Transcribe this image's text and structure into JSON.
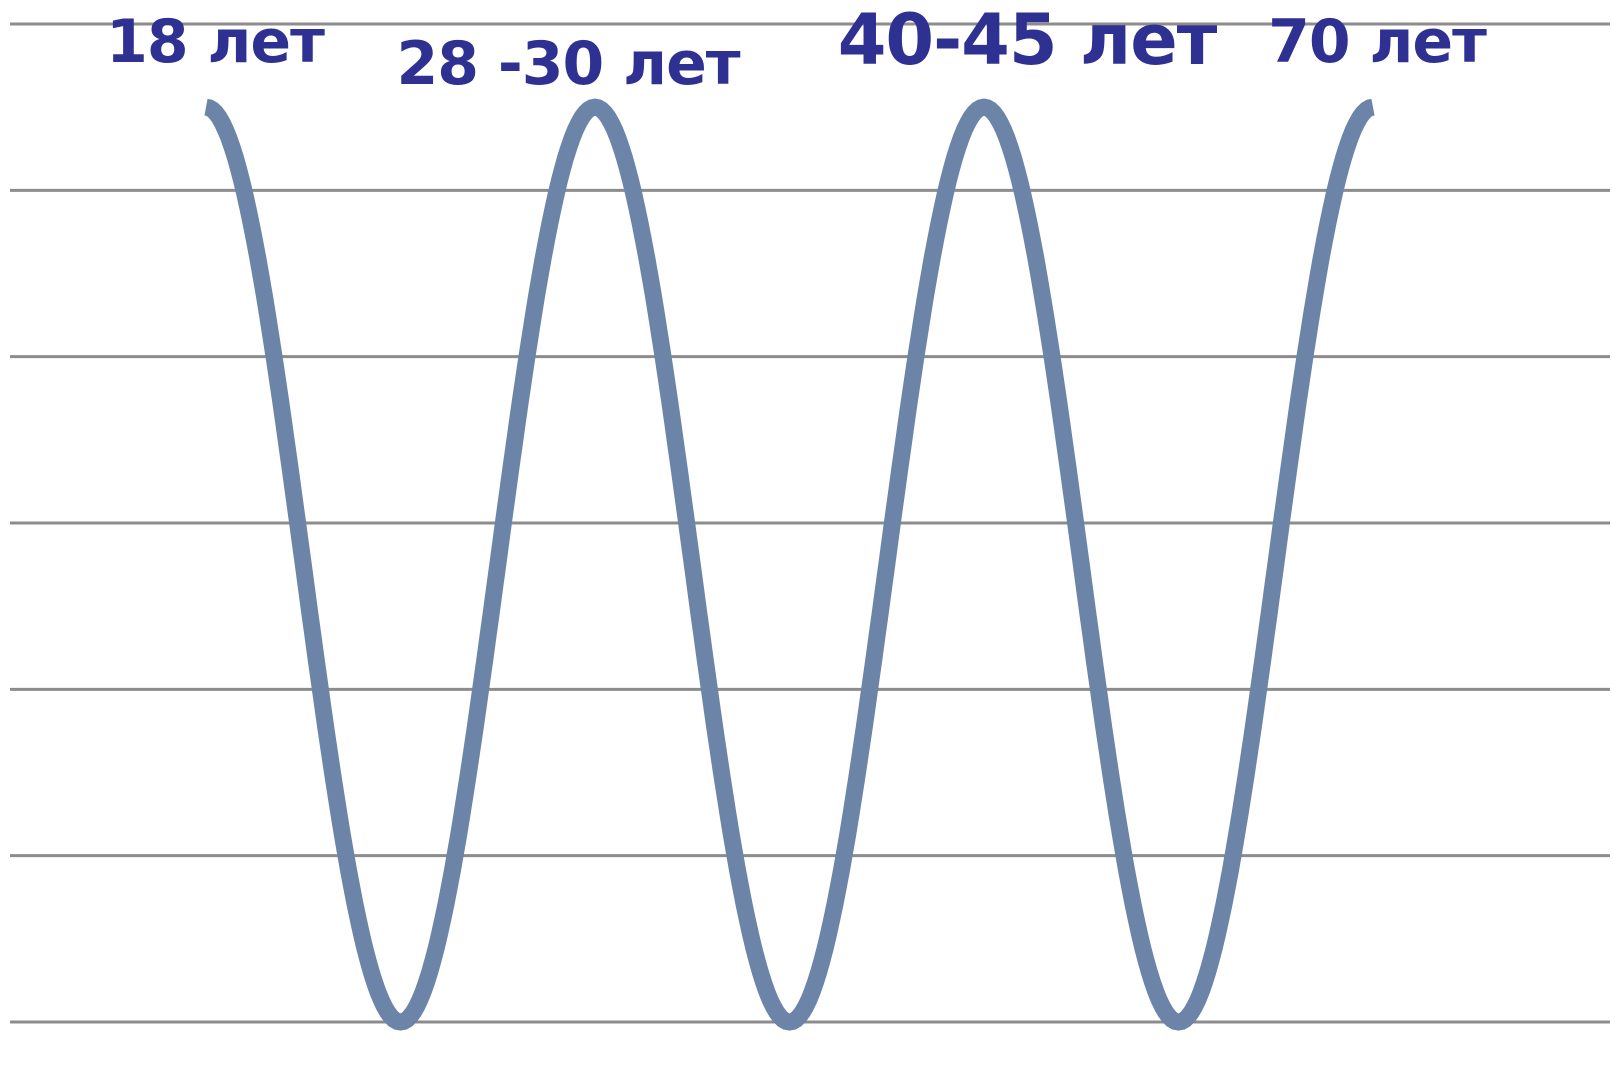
{
  "chart_data": {
    "type": "line",
    "title": "",
    "xlabel": "",
    "ylabel": "",
    "grid": true,
    "legend": "none",
    "ylim": [
      0,
      6
    ],
    "grid_lines": 7,
    "x": [
      0,
      1,
      2,
      3,
      4,
      5,
      6
    ],
    "series": [
      {
        "values": [
          5.5,
          0,
          5.5,
          0,
          5.5,
          0,
          5.5
        ],
        "color": "#6c84a8"
      }
    ],
    "peak_labels": [
      {
        "text": "18 лет",
        "x": 0
      },
      {
        "text": "28 -30 лет",
        "x": 2
      },
      {
        "text": "40-45 лет",
        "x": 4
      },
      {
        "text": "70 лет",
        "x": 6
      }
    ],
    "label_color": "#2e3192"
  }
}
